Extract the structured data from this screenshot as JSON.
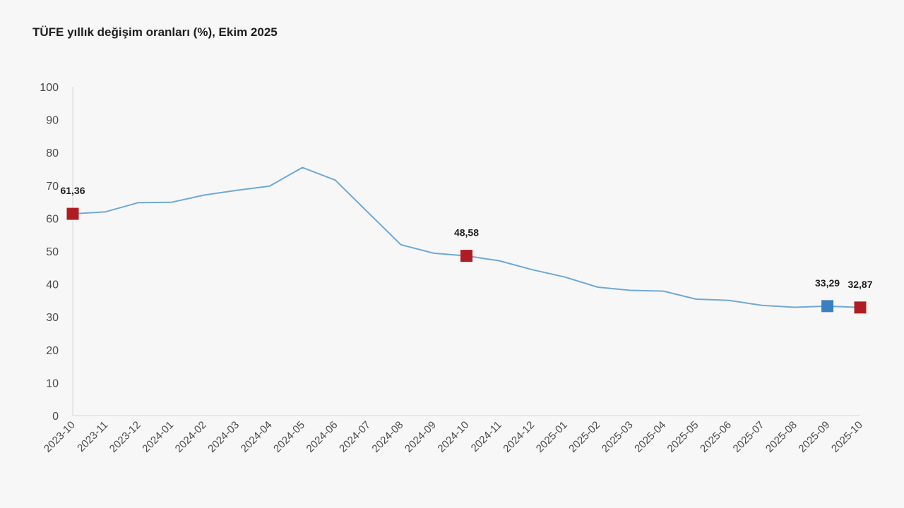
{
  "chart_data": {
    "type": "line",
    "title": "TÜFE yıllık değişim oranları (%), Ekim 2025",
    "xlabel": "",
    "ylabel": "",
    "ylim": [
      0,
      100
    ],
    "yticks": [
      0,
      10,
      20,
      30,
      40,
      50,
      60,
      70,
      80,
      90,
      100
    ],
    "grid": false,
    "categories": [
      "2023-10",
      "2023-11",
      "2023-12",
      "2024-01",
      "2024-02",
      "2024-03",
      "2024-04",
      "2024-05",
      "2024-06",
      "2024-07",
      "2024-08",
      "2024-09",
      "2024-10",
      "2024-11",
      "2024-12",
      "2025-01",
      "2025-02",
      "2025-03",
      "2025-04",
      "2025-05",
      "2025-06",
      "2025-07",
      "2025-08",
      "2025-09",
      "2025-10"
    ],
    "series": [
      {
        "values": [
          61.36,
          61.98,
          64.77,
          64.86,
          67.07,
          68.5,
          69.8,
          75.45,
          71.6,
          61.78,
          51.97,
          49.38,
          48.58,
          47.09,
          44.38,
          42.12,
          39.05,
          38.1,
          37.86,
          35.41,
          35.05,
          33.52,
          32.95,
          33.29,
          32.87
        ],
        "color": "#6fa8d6"
      }
    ],
    "highlights": [
      {
        "index": 0,
        "label": "61,36",
        "color": "#b01c24"
      },
      {
        "index": 12,
        "label": "48,58",
        "color": "#b01c24"
      },
      {
        "index": 23,
        "label": "33,29",
        "color": "#3a7fc1"
      },
      {
        "index": 24,
        "label": "32,87",
        "color": "#b01c24"
      }
    ]
  }
}
